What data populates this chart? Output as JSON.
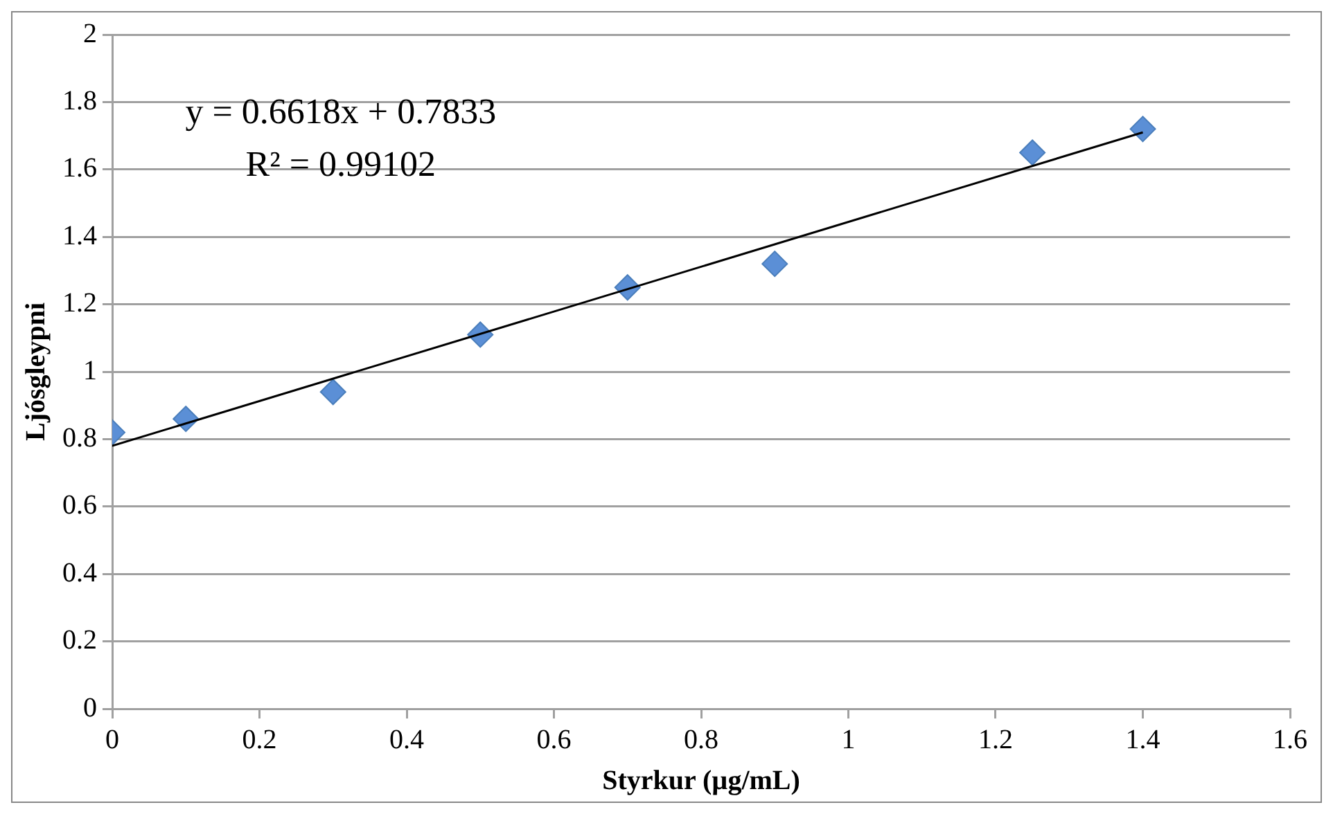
{
  "chart_data": {
    "type": "scatter",
    "xlabel": "Styrkur (µg/mL)",
    "ylabel": "Ljósgleypni",
    "xlim": [
      0,
      1.6
    ],
    "xticks": [
      0,
      0.2,
      0.4,
      0.6,
      0.8,
      1,
      1.2,
      1.4,
      1.6
    ],
    "ylim": [
      0,
      2
    ],
    "yticks": [
      0,
      0.2,
      0.4,
      0.6,
      0.8,
      1,
      1.2,
      1.4,
      1.6,
      1.8,
      2
    ],
    "grid": "y",
    "legend": false,
    "series": [
      {
        "marker": "diamond",
        "color": "#5b8fd6",
        "x": [
          0,
          0.1,
          0.3,
          0.5,
          0.7,
          0.9,
          1.25,
          1.4
        ],
        "values": [
          0.82,
          0.86,
          0.94,
          1.11,
          1.25,
          1.32,
          1.65,
          1.72
        ]
      },
      {
        "type": "line",
        "marker": "none",
        "color": "#000000",
        "x": [
          0,
          1.4
        ],
        "values": [
          0.78,
          1.71
        ]
      }
    ],
    "annotations": [
      "y = 0.6618x + 0.7833",
      "R² = 0.99102"
    ]
  }
}
